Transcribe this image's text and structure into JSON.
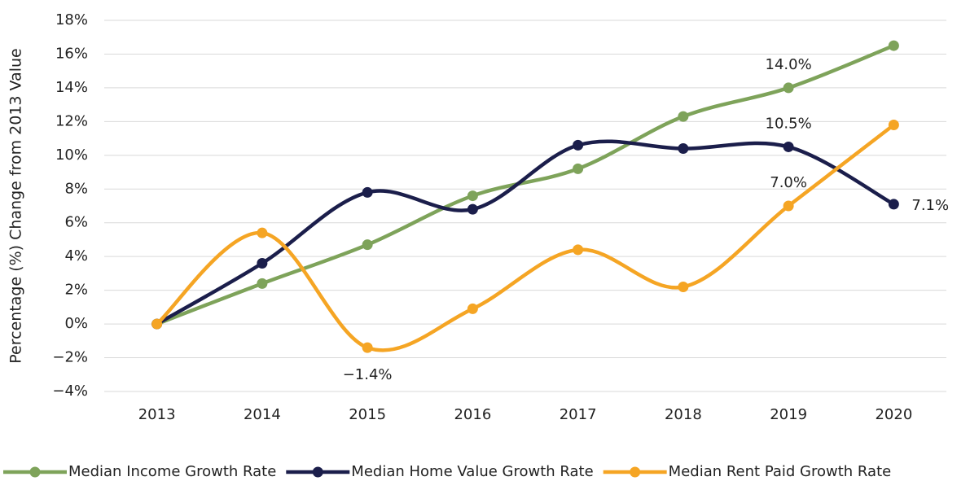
{
  "chart_data": {
    "type": "line",
    "y_label": "Percentage (%) Change from 2013 Value",
    "categories": [
      "2013",
      "2014",
      "2015",
      "2016",
      "2017",
      "2018",
      "2019",
      "2020"
    ],
    "series": [
      {
        "name": "Median Income Growth Rate",
        "color": "#7ea35a",
        "values": [
          0,
          2.4,
          4.7,
          7.6,
          9.2,
          12.3,
          14.0,
          16.5
        ],
        "value_labels": [
          null,
          null,
          null,
          null,
          null,
          null,
          "14.0%",
          null
        ]
      },
      {
        "name": "Median Home Value Growth Rate",
        "color": "#1b1e4b",
        "values": [
          0,
          3.6,
          7.8,
          6.8,
          10.6,
          10.4,
          10.5,
          7.1
        ],
        "value_labels": [
          null,
          null,
          null,
          null,
          null,
          null,
          "10.5%",
          "7.1%"
        ]
      },
      {
        "name": "Median Rent Paid Growth Rate",
        "color": "#f5a524",
        "values": [
          0,
          5.4,
          -1.4,
          0.9,
          4.4,
          2.2,
          7.0,
          11.8
        ],
        "value_labels": [
          null,
          null,
          "−1.4%",
          null,
          null,
          null,
          "7.0%",
          null
        ]
      }
    ],
    "ylim": [
      -4,
      18
    ],
    "yticks": [
      {
        "value": -4,
        "label": "−4%"
      },
      {
        "value": -2,
        "label": "−2%"
      },
      {
        "value": 0,
        "label": "0%"
      },
      {
        "value": 2,
        "label": "2%"
      },
      {
        "value": 4,
        "label": "4%"
      },
      {
        "value": 6,
        "label": "6%"
      },
      {
        "value": 8,
        "label": "8%"
      },
      {
        "value": 10,
        "label": "10%"
      },
      {
        "value": 12,
        "label": "12%"
      },
      {
        "value": 14,
        "label": "14%"
      },
      {
        "value": 16,
        "label": "16%"
      },
      {
        "value": 18,
        "label": "18%"
      }
    ],
    "grid": true,
    "smooth": true,
    "legend": "bottom"
  }
}
